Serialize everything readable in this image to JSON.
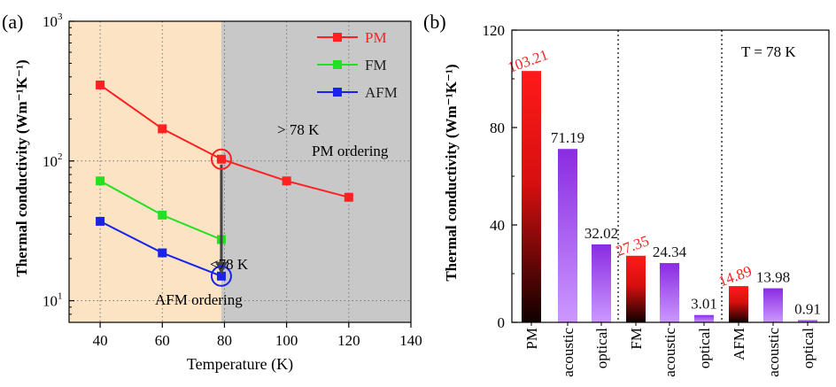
{
  "chart_data": [
    {
      "panel_label": "(a)",
      "type": "line",
      "xlabel": "Temperature (K)",
      "ylabel": "Thermal conductivity (Wm⁻¹K⁻¹)",
      "xlim": [
        30,
        140
      ],
      "ylim": [
        7,
        1000
      ],
      "y_scale": "log",
      "x_ticks": [
        40,
        60,
        80,
        100,
        120,
        140
      ],
      "y_ticks": [
        {
          "v": 10,
          "base": "10",
          "exp": "1"
        },
        {
          "v": 100,
          "base": "10",
          "exp": "2"
        },
        {
          "v": 1000,
          "base": "10",
          "exp": "3"
        }
      ],
      "grid": true,
      "legend_position": "top-right",
      "series": [
        {
          "name": "PM",
          "color": "#ff2020",
          "points": [
            [
              40,
              350
            ],
            [
              60,
              170
            ],
            [
              79,
              103
            ],
            [
              100,
              72
            ],
            [
              120,
              55
            ]
          ]
        },
        {
          "name": "FM",
          "color": "#22e022",
          "points": [
            [
              40,
              72
            ],
            [
              60,
              41
            ],
            [
              79,
              27.4
            ]
          ]
        },
        {
          "name": "AFM",
          "color": "#1a22ee",
          "points": [
            [
              40,
              37
            ],
            [
              60,
              22
            ],
            [
              79,
              15
            ]
          ]
        }
      ],
      "regions": [
        {
          "from": 30,
          "to": 79,
          "color": "#fbe3c4"
        },
        {
          "from": 79,
          "to": 140,
          "color": "#c8c8c8"
        }
      ],
      "annotations": {
        "above_label": "> 78 K",
        "pm_ordering": "PM ordering",
        "below_label": "<78 K",
        "afm_ordering": "AFM ordering"
      }
    },
    {
      "panel_label": "(b)",
      "type": "bar",
      "ylabel": "Thermal conductivity (Wm⁻¹K⁻¹)",
      "ylim": [
        0,
        120
      ],
      "y_ticks": [
        0,
        40,
        80,
        120
      ],
      "condition_label": "T = 78 K",
      "categories": [
        "PM",
        "acoustic",
        "optical",
        "FM",
        "acoustic",
        "optical",
        "AFM",
        "acoustic",
        "optical"
      ],
      "values": [
        103.21,
        71.19,
        32.02,
        27.35,
        24.34,
        3.01,
        14.89,
        13.98,
        0.91
      ],
      "value_labels": [
        "103.21",
        "71.19",
        "32.02",
        "27.35",
        "24.34",
        "3.01",
        "14.89",
        "13.98",
        "0.91"
      ],
      "bar_kinds": [
        "total",
        "acoustic",
        "optical",
        "total",
        "acoustic",
        "optical",
        "total",
        "acoustic",
        "optical"
      ],
      "colors": {
        "total_top": "#ff1a1a",
        "total_bottom": "#100000",
        "phonon_top": "#8a2be2",
        "phonon_bottom": "#cc99ff",
        "total_label": "#ff2222",
        "phonon_label": "#111111"
      }
    }
  ]
}
